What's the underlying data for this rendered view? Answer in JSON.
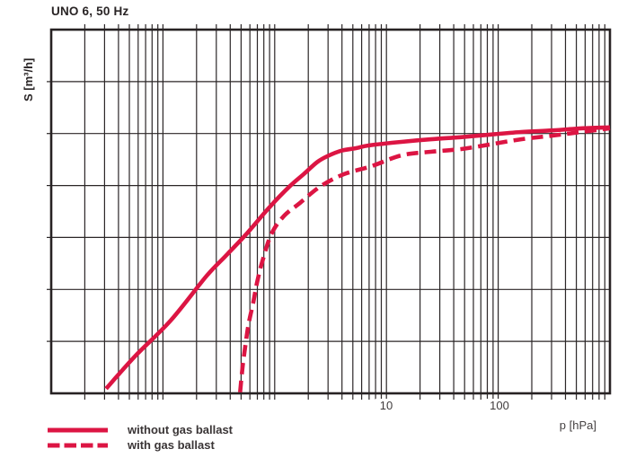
{
  "chart_data": {
    "type": "line",
    "title": "UNO 6, 50 Hz",
    "xlabel": "p [hPa]",
    "ylabel": "S [m³/h]",
    "x_scale": "log",
    "x_range_hpa": [
      0.01,
      1000
    ],
    "x_tick_labels": [
      "10",
      "100"
    ],
    "y_axis_note": "no numeric y tick labels visible; frame has 8 evenly spaced horizontal gridlines (7 rows), y values given in grid units above bottom axis",
    "ylim_grid_units": [
      0,
      7
    ],
    "grid": true,
    "legend_position": "bottom-left-below-plot",
    "series": [
      {
        "name": "without gas ballast",
        "line_style": "solid",
        "color": "#dc1543",
        "points": [
          [
            0.031,
            0.09
          ],
          [
            0.056,
            0.71
          ],
          [
            0.117,
            1.4
          ],
          [
            0.246,
            2.26
          ],
          [
            0.378,
            2.68
          ],
          [
            0.565,
            3.08
          ],
          [
            0.896,
            3.58
          ],
          [
            1.37,
            3.99
          ],
          [
            1.82,
            4.22
          ],
          [
            2.4,
            4.45
          ],
          [
            3.0,
            4.57
          ],
          [
            3.95,
            4.67
          ],
          [
            5.4,
            4.72
          ],
          [
            6.9,
            4.77
          ],
          [
            13.6,
            4.84
          ],
          [
            25,
            4.89
          ],
          [
            46,
            4.93
          ],
          [
            84,
            4.98
          ],
          [
            160,
            5.03
          ],
          [
            307,
            5.06
          ],
          [
            553,
            5.1
          ],
          [
            1000,
            5.12
          ]
        ]
      },
      {
        "name": "with gas ballast",
        "line_style": "dashed",
        "color": "#dc1543",
        "points": [
          [
            0.49,
            0.02
          ],
          [
            0.51,
            0.4
          ],
          [
            0.53,
            0.71
          ],
          [
            0.58,
            1.3
          ],
          [
            0.64,
            1.73
          ],
          [
            0.7,
            2.16
          ],
          [
            0.78,
            2.56
          ],
          [
            0.94,
            3.08
          ],
          [
            1.22,
            3.42
          ],
          [
            1.65,
            3.65
          ],
          [
            2.59,
            3.99
          ],
          [
            4.2,
            4.22
          ],
          [
            7.3,
            4.37
          ],
          [
            13.6,
            4.58
          ],
          [
            25,
            4.65
          ],
          [
            46,
            4.7
          ],
          [
            84,
            4.79
          ],
          [
            160,
            4.89
          ],
          [
            307,
            4.96
          ],
          [
            553,
            5.03
          ],
          [
            1000,
            5.1
          ]
        ]
      }
    ]
  },
  "colors": {
    "curve_red": "#dc1543",
    "grid": "#2b2627",
    "frame": "#272223",
    "title_text": "#292425",
    "tick_text": "#3f3b3c",
    "background": "#ffffff"
  }
}
